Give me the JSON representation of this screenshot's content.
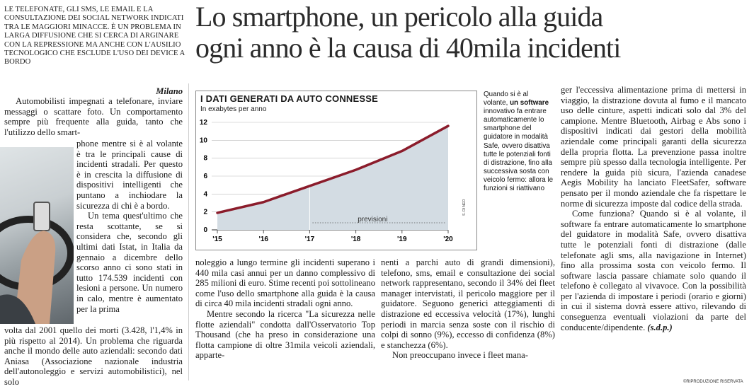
{
  "kicker": "LE TELEFONATE, GLI SMS, LE EMAIL E LA CONSULTAZIONE DEI SOCIAL NETWORK INDICATI TRA LE MAGGIORI MINACCE. È UN PROBLEMA IN LARGA DIFFUSIONE CHE SI CERCA DI ARGINARE CON LA REPRESSIONE MA ANCHE CON L'AUSILIO TECNOLOGICO CHE ESCLUDE L'USO DEI DEVICE A BORDO",
  "headline_line1": "Lo smartphone, un pericolo alla guida",
  "headline_line2": "ogni anno è la causa di 40mila incidenti",
  "col1": {
    "city": "Milano",
    "p1_top": "Automobilisti impegnati a telefonare, inviare messaggi o scattare foto. Un comportamento sempre più frequente alla guida, tanto che l'utilizzo dello smart-",
    "p1_wrap": "phone mentre si è al volante è tra le principali cause di incidenti stradali. Per questo è in crescita la diffusione di dispositivi intelligenti che puntano a inchiodare la sicurezza di chi è a bordo.",
    "p2_wrap": "Un tema quest'ultimo che resta scottante, se si considera che, secondo gli ultimi dati Istat, in Italia da gennaio a dicembre dello scorso anno ci sono stati in tutto 174.539 incidenti con lesioni a persone. Un numero in calo, mentre è aumentato per la prima",
    "p2_full": "volta dal 2001 quello dei morti (3.428, l'1,4% in più rispetto al 2014). Un problema che riguarda anche il mondo delle auto aziendali: secondo dati Aniasa (Associazione nazionale industria dell'autonoleggio e servizi automobilistici), nel solo"
  },
  "col2": "noleggio a lungo termine gli incidenti superano i 440 mila casi annui per un danno complessivo di 285 milioni di euro. Stime recenti poi sottolineano come l'uso dello smartphone alla guida è la causa di circa 40 mila incidenti stradali ogni anno.",
  "col2_p2": "Mentre secondo la ricerca \"La sicurezza nelle flotte aziendali\" condotta dall'Osservatorio Top Thousand (che ha preso in considerazione una flotta campione di oltre 31mila veicoli aziendali, apparte-",
  "col3": "nenti a parchi auto di grandi dimensioni), telefono, sms, email e consultazione dei social network rappresentano, secondo il 34% dei fleet manager intervistati, il pericolo maggiore per il guidatore. Seguono generici atteggiamenti di distrazione ed eccessiva velocità (17%), lunghi periodi in marcia senza soste con il rischio di colpi di sonno (9%), eccesso di confidenza (8%) e stanchezza (6%).",
  "col3_p2": "Non preoccupano invece i fleet mana-",
  "sidebar": {
    "pre": "Quando si è al volante,",
    "bold": "un software",
    "post": "innovativo fa entrare automaticamente lo smartphone del guidatore in modalità Safe, ovvero disattiva tutte le potenziali fonti di distrazione, fino alla successiva sosta con veicolo fermo: allora le funzioni si riattivano"
  },
  "col4_p1": "ger l'eccessiva alimentazione prima di mettersi in viaggio, la distrazione dovuta al fumo e il mancato uso delle cinture, aspetti indicati solo dal 3% del campione. Mentre Bluetooth, Airbag e Abs sono i dispositivi indicati dai gestori della mobilità aziendale come principali garanti della sicurezza della propria flotta. La prevenzione passa inoltre sempre più spesso dalla tecnologia intelligente. Per rendere la guida più sicura, l'azienda canadese Aegis Mobility ha lanciato FleetSafer, software pensato per il mondo aziendale che fa rispettare le norme di sicurezza imposte dal codice della strada.",
  "col4_p2": "Come funziona? Quando si è al volante, il software fa entrare automaticamente lo smartphone del guidatore in modalità Safe, ovvero disattiva tutte le potenziali fonti di distrazione (dalle telefonate agli sms, alla navigazione in Internet) fino alla prossima sosta con veicolo fermo. Il software lascia passare chiamate solo quando il telefono è collegato al vivavoce. Con la possibilità per l'azienda di impostare i periodi (orario e giorni) in cui il sistema dovrà essere attivo, rilevando di conseguenza eventuali violazioni da parte del conducente/dipendente.",
  "signature": "(s.d.p.)",
  "footer": "©RIPRODUZIONE RISERVATA",
  "chart_credit": "S. DI NEO",
  "chart_data": {
    "type": "area",
    "title": "I DATI GENERATI DA AUTO CONNESSE",
    "ylabel": "In exabytes per anno",
    "x": [
      "'15",
      "'16",
      "'17",
      "'18",
      "'19",
      "'20"
    ],
    "values": [
      1.9,
      3.1,
      4.9,
      6.7,
      8.8,
      11.6
    ],
    "ylim": [
      0,
      12
    ],
    "yticks": [
      0,
      2,
      4,
      6,
      8,
      10,
      12
    ],
    "forecast_label": "previsioni",
    "forecast_from": "'17",
    "line_color": "#8b1c2b",
    "area_color": "#d3dce3"
  }
}
